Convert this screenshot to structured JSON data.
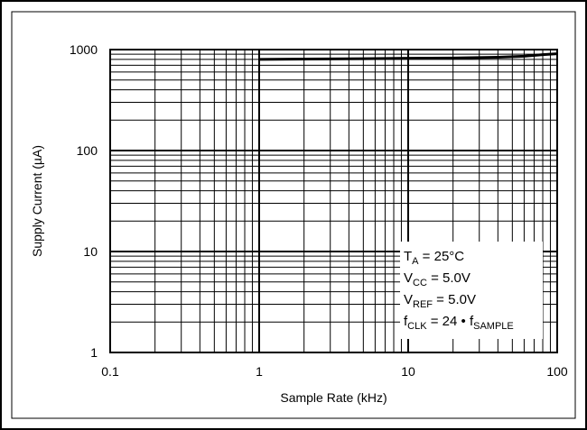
{
  "chart_data": {
    "type": "line",
    "title": "",
    "xlabel": "Sample Rate (kHz)",
    "ylabel": "Supply Current (µA)",
    "xscale": "log",
    "yscale": "log",
    "xlim": [
      0.1,
      100
    ],
    "ylim": [
      1,
      1000
    ],
    "grid": true,
    "x_ticks": [
      "0.1",
      "1",
      "10",
      "100"
    ],
    "y_ticks": [
      "1",
      "10",
      "100",
      "1000"
    ],
    "series": [
      {
        "x": [
          1,
          2,
          5,
          10,
          20,
          40,
          60,
          80,
          100
        ],
        "y": [
          800,
          805,
          812,
          820,
          825,
          840,
          860,
          890,
          910
        ]
      }
    ],
    "annotation": {
      "line1": {
        "main": "T",
        "sub": "A",
        "rest": " = 25°C"
      },
      "line2": {
        "main": "V",
        "sub": "CC",
        "rest": " = 5.0V"
      },
      "line3": {
        "main": "V",
        "sub": "REF",
        "rest": " = 5.0V"
      },
      "line4": {
        "main": "f",
        "sub": "CLK",
        "rest": " = 24 • f",
        "sub2": "SAMPLE"
      }
    }
  }
}
